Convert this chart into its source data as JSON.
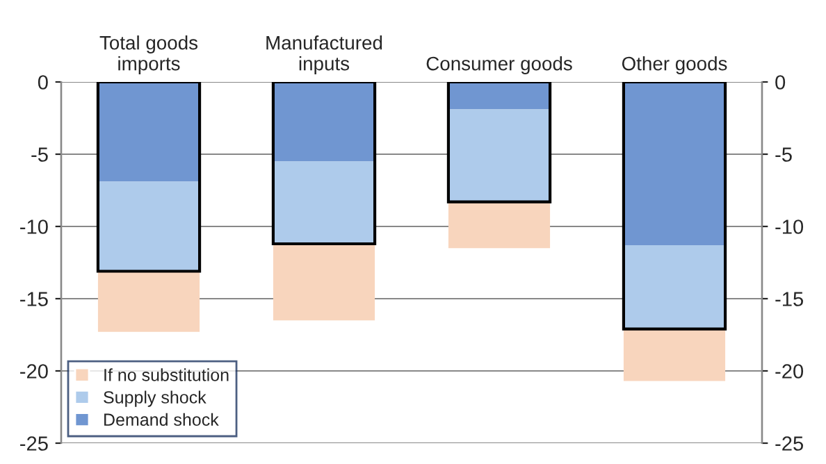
{
  "chart_data": {
    "type": "bar",
    "categories": [
      "Total goods\nimports",
      "Manufactured\ninputs",
      "Consumer goods",
      "Other goods"
    ],
    "series": [
      {
        "name": "Demand shock",
        "color": "#7096d1",
        "base": [
          0,
          0,
          0,
          0
        ],
        "values": [
          -6.9,
          -5.5,
          -1.9,
          -11.3
        ]
      },
      {
        "name": "Supply shock",
        "color": "#aecbeb",
        "base": [
          -6.9,
          -5.5,
          -1.9,
          -11.3
        ],
        "values": [
          -6.2,
          -5.7,
          -6.4,
          -5.8
        ]
      },
      {
        "name": "If no substitution",
        "color": "#f8d5bd",
        "base": [
          -13.1,
          -11.2,
          -8.3,
          -17.1
        ],
        "values": [
          -4.2,
          -5.3,
          -3.2,
          -3.6
        ]
      },
      {
        "color": "#000000",
        "base": [
          0,
          0,
          0,
          0
        ],
        "values": [
          -13.1,
          -11.2,
          -8.3,
          -17.1
        ]
      }
    ],
    "ylim": [
      -25,
      0
    ],
    "yticks": [
      -25,
      -20,
      -15,
      -10,
      -5,
      0
    ],
    "y2lim": [
      -25,
      0
    ],
    "y2ticks": [
      -25,
      -20,
      -15,
      -10,
      -5,
      0
    ],
    "grid": "y",
    "legend": "bottom left"
  }
}
